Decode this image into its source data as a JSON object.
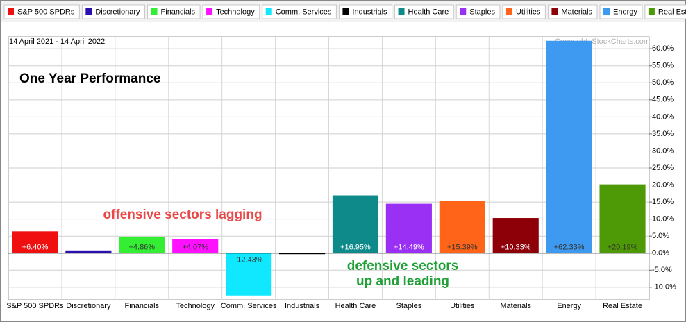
{
  "chart_data": {
    "type": "bar",
    "title": "One Year Performance",
    "subtitle": "14 April 2021 - 14 April 2022",
    "credit": "Copyright, StockCharts.com",
    "categories": [
      "S&P 500 SPDRs",
      "Discretionary",
      "Financials",
      "Technology",
      "Comm. Services",
      "Industrials",
      "Health Care",
      "Staples",
      "Utilities",
      "Materials",
      "Energy",
      "Real Estate"
    ],
    "values": [
      6.4,
      0.8,
      4.86,
      4.07,
      -12.43,
      -0.3,
      16.95,
      14.49,
      15.39,
      10.33,
      62.33,
      20.19
    ],
    "value_labels": [
      "+6.40%",
      null,
      "+4.86%",
      "+4.07%",
      "-12.43%",
      null,
      "+16.95%",
      "+14.49%",
      "+15.39%",
      "+10.33%",
      "+62.33%",
      "+20.19%"
    ],
    "colors": [
      "#f01010",
      "#2a0fb0",
      "#33ee33",
      "#ff10ff",
      "#10e8ff",
      "#000000",
      "#0e8a8a",
      "#9b30f5",
      "#ff6418",
      "#8e0008",
      "#3d9af0",
      "#4e9a06"
    ],
    "ylim": [
      -13.7,
      63.5
    ],
    "yticks": [
      {
        "value": -10,
        "label": "-10.0%"
      },
      {
        "value": -5,
        "label": "-5.0%"
      },
      {
        "value": 0,
        "label": "0.0%"
      },
      {
        "value": 5,
        "label": "5.0%"
      },
      {
        "value": 10,
        "label": "10.0%"
      },
      {
        "value": 15,
        "label": "15.0%"
      },
      {
        "value": 20,
        "label": "20.0%"
      },
      {
        "value": 25,
        "label": "25.0%"
      },
      {
        "value": 30,
        "label": "30.0%"
      },
      {
        "value": 35,
        "label": "35.0%"
      },
      {
        "value": 40,
        "label": "40.0%"
      },
      {
        "value": 45,
        "label": "45.0%"
      },
      {
        "value": 50,
        "label": "50.0%"
      },
      {
        "value": 55,
        "label": "55.0%"
      },
      {
        "value": 60,
        "label": "60.0%"
      }
    ],
    "grid": true,
    "legend": "top",
    "annotations": [
      {
        "lines": [
          "offensive sectors lagging"
        ],
        "color": "#e84848"
      },
      {
        "lines": [
          "defensive sectors",
          "up and leading"
        ],
        "color": "#22a038"
      }
    ]
  }
}
